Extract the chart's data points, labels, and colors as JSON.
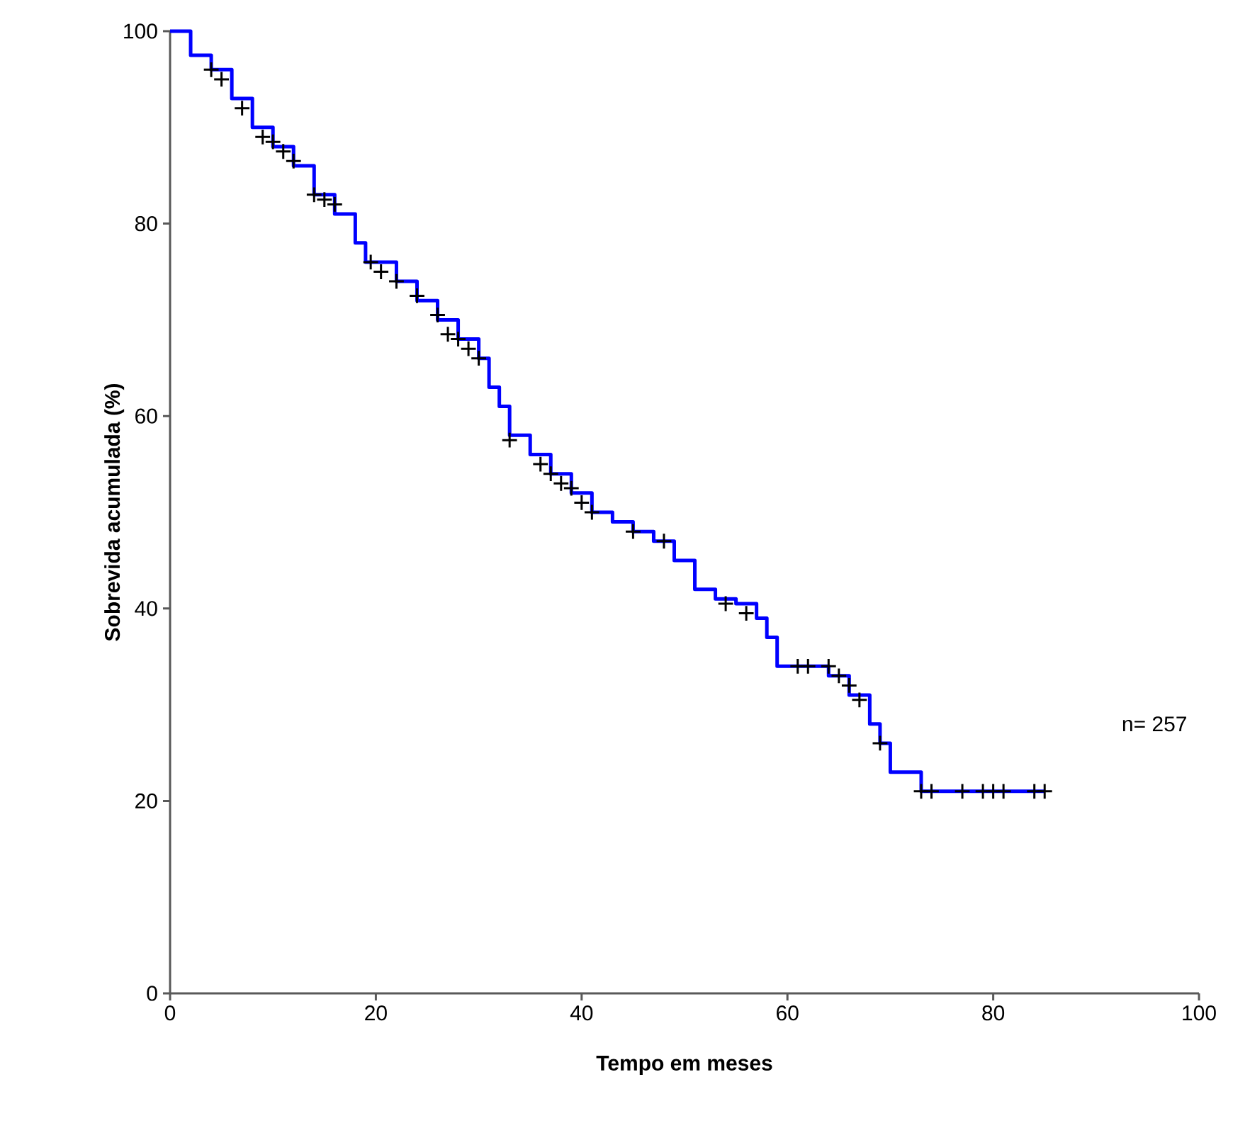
{
  "chart_data": {
    "type": "step",
    "xlabel": "Tempo em meses",
    "ylabel": "Sobrevida acumulada (%)",
    "xlim": [
      0,
      100
    ],
    "ylim": [
      0,
      100
    ],
    "xticks": [
      0,
      20,
      40,
      60,
      80,
      100
    ],
    "yticks": [
      0,
      20,
      40,
      60,
      80,
      100
    ],
    "grid": false,
    "annotations": [
      "n= 257"
    ],
    "series": [
      {
        "color": "#0000ff",
        "marker": "none",
        "x": [
          0,
          2,
          4,
          6,
          8,
          10,
          12,
          14,
          16,
          18,
          19,
          22,
          24,
          26,
          28,
          30,
          31,
          32,
          33,
          35,
          37,
          39,
          41,
          43,
          45,
          47,
          49,
          51,
          53,
          55,
          57,
          58,
          59,
          62,
          64,
          66,
          68,
          69,
          70,
          72,
          73,
          85
        ],
        "values": [
          100,
          97.5,
          96,
          93,
          90,
          88,
          86,
          83,
          81,
          78,
          76,
          74,
          72,
          70,
          68,
          66,
          63,
          61,
          58,
          56,
          54,
          52,
          50,
          49,
          48,
          47,
          45,
          42,
          41,
          40.5,
          39,
          37,
          34,
          34,
          33,
          31,
          28,
          26,
          23,
          23,
          21,
          21
        ]
      },
      {
        "type": "scatter",
        "color": "#000000",
        "marker": "cross",
        "x": [
          4,
          5,
          7,
          9,
          10,
          11,
          12,
          14,
          15,
          16,
          19.5,
          20.5,
          22,
          24,
          26,
          27,
          28,
          29,
          30,
          33,
          36,
          37,
          38,
          39,
          40,
          41,
          45,
          48,
          54,
          56,
          61,
          62,
          64,
          65,
          66,
          67,
          69,
          73,
          74,
          77,
          79,
          80,
          81,
          84,
          85
        ],
        "values": [
          96,
          95,
          92,
          89,
          88.5,
          87.5,
          86.5,
          83,
          82.5,
          82,
          76,
          75,
          74,
          72.5,
          70.5,
          68.5,
          68,
          67,
          66,
          57.5,
          55,
          54,
          53,
          52.5,
          51,
          50,
          48,
          47,
          40.5,
          39.5,
          34,
          34,
          34,
          33,
          32,
          30.5,
          26,
          21,
          21,
          21,
          21,
          21,
          21,
          21,
          21
        ]
      }
    ]
  }
}
